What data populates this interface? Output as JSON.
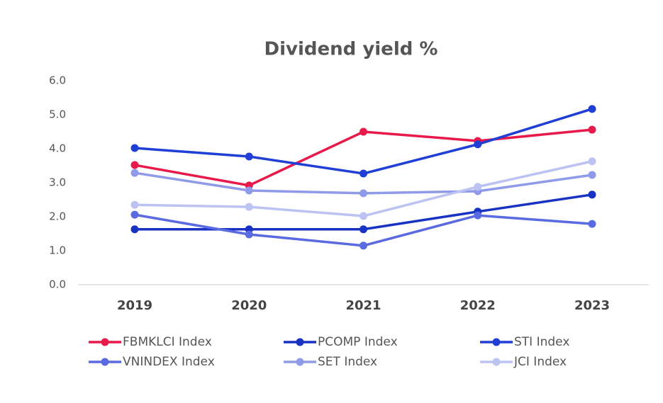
{
  "chart_data": {
    "type": "line",
    "title": "Dividend yield %",
    "categories": [
      "2019",
      "2020",
      "2021",
      "2022",
      "2023"
    ],
    "ylim": [
      0,
      6
    ],
    "yticks": [
      {
        "value": 0,
        "label": "0.0"
      },
      {
        "value": 1,
        "label": "1.0"
      },
      {
        "value": 2,
        "label": "2.0"
      },
      {
        "value": 3,
        "label": "3.0"
      },
      {
        "value": 4,
        "label": "4.0"
      },
      {
        "value": 5,
        "label": "5.0"
      },
      {
        "value": 6,
        "label": "6.0"
      }
    ],
    "grid": false,
    "series": [
      {
        "name": "FBMKLCI Index",
        "color": "#e8194b",
        "values": [
          3.52,
          2.92,
          4.5,
          4.23,
          4.56
        ]
      },
      {
        "name": "PCOMP Index",
        "color": "#1832c4",
        "values": [
          1.63,
          1.63,
          1.63,
          2.15,
          2.65
        ]
      },
      {
        "name": "STI Index",
        "color": "#1f3fd6",
        "values": [
          4.02,
          3.77,
          3.27,
          4.13,
          5.17
        ]
      },
      {
        "name": "VNINDEX Index",
        "color": "#5a6ae0",
        "values": [
          2.06,
          1.48,
          1.15,
          2.04,
          1.79
        ]
      },
      {
        "name": "SET Index",
        "color": "#8f9ae8",
        "values": [
          3.29,
          2.77,
          2.69,
          2.75,
          3.23
        ]
      },
      {
        "name": "JCI Index",
        "color": "#bcc3f2",
        "values": [
          2.35,
          2.29,
          2.02,
          2.88,
          3.63
        ]
      }
    ]
  }
}
